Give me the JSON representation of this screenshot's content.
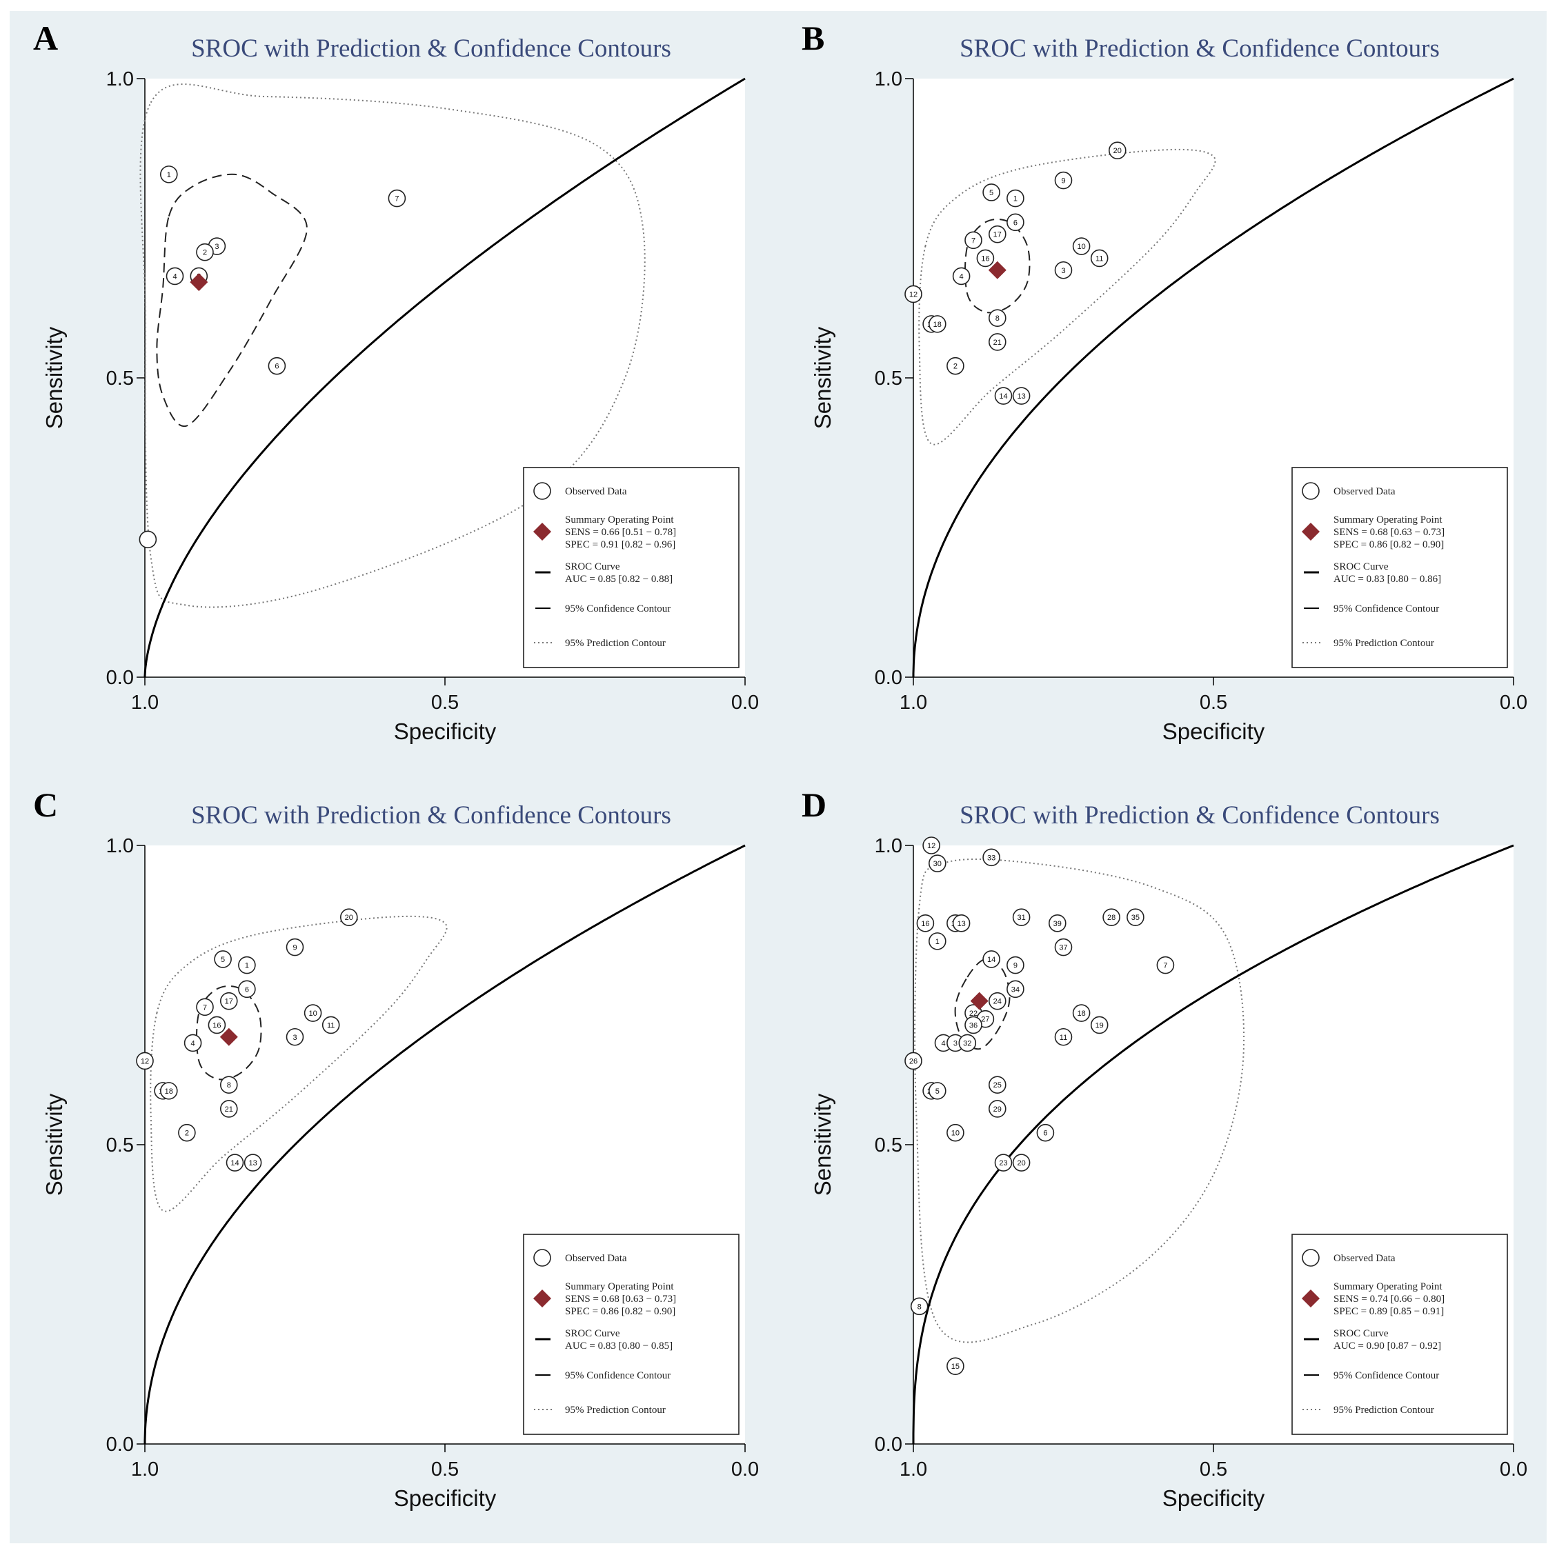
{
  "chart_data": [
    {
      "type": "scatter",
      "panel": "A",
      "title": "SROC with Prediction & Confidence Contours",
      "xlabel": "Specificity",
      "ylabel": "Sensitivity",
      "xlim": [
        1.0,
        0.0
      ],
      "ylim": [
        0.0,
        1.0
      ],
      "xticks": [
        "1.0",
        "0.5",
        "0.0"
      ],
      "yticks": [
        "0.0",
        "0.5",
        "1.0"
      ],
      "legend_position": "bottom-right",
      "legend": {
        "observed": "Observed Data",
        "summary_title": "Summary Operating Point",
        "summary_sens": "SENS = 0.66 [0.51 − 0.78]",
        "summary_spec": "SPEC = 0.91 [0.82 − 0.96]",
        "sroc_title": "SROC Curve",
        "sroc_auc": "AUC = 0.85 [0.82 − 0.88]",
        "confidence": "95% Confidence Contour",
        "prediction": "95% Prediction Contour"
      },
      "summary_point": {
        "spec": 0.91,
        "sens": 0.66
      },
      "sroc_b": 0.6,
      "confidence_contour": [
        [
          0.96,
          0.77
        ],
        [
          0.92,
          0.82
        ],
        [
          0.85,
          0.84
        ],
        [
          0.79,
          0.81
        ],
        [
          0.73,
          0.75
        ],
        [
          0.79,
          0.63
        ],
        [
          0.86,
          0.51
        ],
        [
          0.93,
          0.42
        ],
        [
          0.97,
          0.47
        ],
        [
          0.98,
          0.55
        ],
        [
          0.97,
          0.65
        ]
      ],
      "prediction_contour": [
        [
          0.99,
          0.96
        ],
        [
          0.8,
          0.97
        ],
        [
          0.5,
          0.95
        ],
        [
          0.25,
          0.89
        ],
        [
          0.17,
          0.75
        ],
        [
          0.2,
          0.5
        ],
        [
          0.35,
          0.3
        ],
        [
          0.7,
          0.15
        ],
        [
          0.93,
          0.12
        ],
        [
          0.99,
          0.2
        ],
        [
          0.999,
          0.6
        ]
      ],
      "studies": [
        {
          "label": "1",
          "spec": 0.96,
          "sens": 0.84
        },
        {
          "label": "7",
          "spec": 0.58,
          "sens": 0.8
        },
        {
          "label": "3",
          "spec": 0.88,
          "sens": 0.72
        },
        {
          "label": "2",
          "spec": 0.9,
          "sens": 0.71
        },
        {
          "label": "4",
          "spec": 0.95,
          "sens": 0.67
        },
        {
          "label": "5",
          "spec": 0.91,
          "sens": 0.67
        },
        {
          "label": "6",
          "spec": 0.78,
          "sens": 0.52
        },
        {
          "label": "",
          "spec": 0.995,
          "sens": 0.23
        }
      ]
    },
    {
      "type": "scatter",
      "panel": "B",
      "title": "SROC with Prediction & Confidence Contours",
      "xlabel": "Specificity",
      "ylabel": "Sensitivity",
      "xlim": [
        1.0,
        0.0
      ],
      "ylim": [
        0.0,
        1.0
      ],
      "xticks": [
        "1.0",
        "0.5",
        "0.0"
      ],
      "yticks": [
        "0.0",
        "0.5",
        "1.0"
      ],
      "legend_position": "bottom-right",
      "legend": {
        "observed": "Observed Data",
        "summary_title": "Summary Operating Point",
        "summary_sens": "SENS = 0.68 [0.63 − 0.73]",
        "summary_spec": "SPEC = 0.86 [0.82 − 0.90]",
        "sroc_title": "SROC Curve",
        "sroc_auc": "AUC = 0.83 [0.80 − 0.86]",
        "confidence": "95% Confidence Contour",
        "prediction": "95% Prediction Contour"
      },
      "summary_point": {
        "spec": 0.86,
        "sens": 0.68
      },
      "sroc_b": 0.5,
      "confidence_contour": [
        [
          0.91,
          0.72
        ],
        [
          0.88,
          0.76
        ],
        [
          0.84,
          0.76
        ],
        [
          0.81,
          0.72
        ],
        [
          0.81,
          0.66
        ],
        [
          0.84,
          0.62
        ],
        [
          0.88,
          0.61
        ],
        [
          0.91,
          0.64
        ]
      ],
      "prediction_contour": [
        [
          0.98,
          0.72
        ],
        [
          0.93,
          0.8
        ],
        [
          0.82,
          0.85
        ],
        [
          0.6,
          0.88
        ],
        [
          0.5,
          0.87
        ],
        [
          0.53,
          0.81
        ],
        [
          0.6,
          0.72
        ],
        [
          0.75,
          0.58
        ],
        [
          0.87,
          0.48
        ],
        [
          0.97,
          0.39
        ],
        [
          0.99,
          0.55
        ]
      ],
      "studies": [
        {
          "label": "20",
          "spec": 0.66,
          "sens": 0.88
        },
        {
          "label": "9",
          "spec": 0.75,
          "sens": 0.83
        },
        {
          "label": "5",
          "spec": 0.87,
          "sens": 0.81
        },
        {
          "label": "1",
          "spec": 0.83,
          "sens": 0.8
        },
        {
          "label": "6",
          "spec": 0.83,
          "sens": 0.76
        },
        {
          "label": "17",
          "spec": 0.86,
          "sens": 0.74
        },
        {
          "label": "7",
          "spec": 0.9,
          "sens": 0.73
        },
        {
          "label": "16",
          "spec": 0.88,
          "sens": 0.7
        },
        {
          "label": "10",
          "spec": 0.72,
          "sens": 0.72
        },
        {
          "label": "11",
          "spec": 0.69,
          "sens": 0.7
        },
        {
          "label": "3",
          "spec": 0.75,
          "sens": 0.68
        },
        {
          "label": "4",
          "spec": 0.92,
          "sens": 0.67
        },
        {
          "label": "12",
          "spec": 1.0,
          "sens": 0.64
        },
        {
          "label": "15",
          "spec": 0.97,
          "sens": 0.59
        },
        {
          "label": "18",
          "spec": 0.96,
          "sens": 0.59
        },
        {
          "label": "8",
          "spec": 0.86,
          "sens": 0.6
        },
        {
          "label": "21",
          "spec": 0.86,
          "sens": 0.56
        },
        {
          "label": "2",
          "spec": 0.93,
          "sens": 0.52
        },
        {
          "label": "13",
          "spec": 0.82,
          "sens": 0.47
        },
        {
          "label": "14",
          "spec": 0.85,
          "sens": 0.47
        }
      ]
    },
    {
      "type": "scatter",
      "panel": "C",
      "title": "SROC with Prediction & Confidence Contours",
      "xlabel": "Specificity",
      "ylabel": "Sensitivity",
      "xlim": [
        1.0,
        0.0
      ],
      "ylim": [
        0.0,
        1.0
      ],
      "xticks": [
        "1.0",
        "0.5",
        "0.0"
      ],
      "yticks": [
        "0.0",
        "0.5",
        "1.0"
      ],
      "legend_position": "bottom-right",
      "legend": {
        "observed": "Observed Data",
        "summary_title": "Summary Operating Point",
        "summary_sens": "SENS = 0.68 [0.63 − 0.73]",
        "summary_spec": "SPEC = 0.86 [0.82 − 0.90]",
        "sroc_title": "SROC Curve",
        "sroc_auc": "AUC = 0.83 [0.80 − 0.85]",
        "confidence": "95% Confidence Contour",
        "prediction": "95% Prediction Contour"
      },
      "summary_point": {
        "spec": 0.86,
        "sens": 0.68
      },
      "sroc_b": 0.5,
      "confidence_contour": [
        [
          0.91,
          0.72
        ],
        [
          0.88,
          0.76
        ],
        [
          0.84,
          0.76
        ],
        [
          0.81,
          0.72
        ],
        [
          0.81,
          0.66
        ],
        [
          0.84,
          0.62
        ],
        [
          0.88,
          0.61
        ],
        [
          0.91,
          0.64
        ]
      ],
      "prediction_contour": [
        [
          0.98,
          0.72
        ],
        [
          0.93,
          0.8
        ],
        [
          0.82,
          0.85
        ],
        [
          0.6,
          0.88
        ],
        [
          0.5,
          0.87
        ],
        [
          0.53,
          0.81
        ],
        [
          0.6,
          0.72
        ],
        [
          0.75,
          0.58
        ],
        [
          0.87,
          0.48
        ],
        [
          0.97,
          0.39
        ],
        [
          0.99,
          0.55
        ]
      ],
      "studies": [
        {
          "label": "20",
          "spec": 0.66,
          "sens": 0.88
        },
        {
          "label": "9",
          "spec": 0.75,
          "sens": 0.83
        },
        {
          "label": "5",
          "spec": 0.87,
          "sens": 0.81
        },
        {
          "label": "1",
          "spec": 0.83,
          "sens": 0.8
        },
        {
          "label": "6",
          "spec": 0.83,
          "sens": 0.76
        },
        {
          "label": "17",
          "spec": 0.86,
          "sens": 0.74
        },
        {
          "label": "7",
          "spec": 0.9,
          "sens": 0.73
        },
        {
          "label": "16",
          "spec": 0.88,
          "sens": 0.7
        },
        {
          "label": "10",
          "spec": 0.72,
          "sens": 0.72
        },
        {
          "label": "11",
          "spec": 0.69,
          "sens": 0.7
        },
        {
          "label": "3",
          "spec": 0.75,
          "sens": 0.68
        },
        {
          "label": "4",
          "spec": 0.92,
          "sens": 0.67
        },
        {
          "label": "12",
          "spec": 1.0,
          "sens": 0.64
        },
        {
          "label": "15",
          "spec": 0.97,
          "sens": 0.59
        },
        {
          "label": "18",
          "spec": 0.96,
          "sens": 0.59
        },
        {
          "label": "8",
          "spec": 0.86,
          "sens": 0.6
        },
        {
          "label": "21",
          "spec": 0.86,
          "sens": 0.56
        },
        {
          "label": "2",
          "spec": 0.93,
          "sens": 0.52
        },
        {
          "label": "13",
          "spec": 0.82,
          "sens": 0.47
        },
        {
          "label": "14",
          "spec": 0.85,
          "sens": 0.47
        }
      ]
    },
    {
      "type": "scatter",
      "panel": "D",
      "title": "SROC with Prediction & Confidence Contours",
      "xlabel": "Specificity",
      "ylabel": "Sensitivity",
      "xlim": [
        1.0,
        0.0
      ],
      "ylim": [
        0.0,
        1.0
      ],
      "xticks": [
        "1.0",
        "0.5",
        "0.0"
      ],
      "yticks": [
        "0.0",
        "0.5",
        "1.0"
      ],
      "legend_position": "bottom-right",
      "legend": {
        "observed": "Observed Data",
        "summary_title": "Summary Operating Point",
        "summary_sens": "SENS = 0.74 [0.66 − 0.80]",
        "summary_spec": "SPEC = 0.89 [0.85 − 0.91]",
        "sroc_title": "SROC Curve",
        "sroc_auc": "AUC = 0.90 [0.87 − 0.92]",
        "confidence": "95% Confidence Contour",
        "prediction": "95% Prediction Contour"
      },
      "summary_point": {
        "spec": 0.89,
        "sens": 0.74
      },
      "sroc_b": 0.4,
      "confidence_contour": [
        [
          0.91,
          0.78
        ],
        [
          0.88,
          0.81
        ],
        [
          0.85,
          0.79
        ],
        [
          0.84,
          0.74
        ],
        [
          0.86,
          0.69
        ],
        [
          0.89,
          0.66
        ],
        [
          0.92,
          0.68
        ],
        [
          0.93,
          0.73
        ]
      ],
      "prediction_contour": [
        [
          0.99,
          0.9
        ],
        [
          0.95,
          0.97
        ],
        [
          0.8,
          0.97
        ],
        [
          0.6,
          0.93
        ],
        [
          0.48,
          0.85
        ],
        [
          0.45,
          0.65
        ],
        [
          0.5,
          0.45
        ],
        [
          0.62,
          0.3
        ],
        [
          0.8,
          0.2
        ],
        [
          0.96,
          0.2
        ],
        [
          0.995,
          0.55
        ]
      ],
      "studies": [
        {
          "label": "12",
          "spec": 0.97,
          "sens": 1.0
        },
        {
          "label": "30",
          "spec": 0.96,
          "sens": 0.97
        },
        {
          "label": "33",
          "spec": 0.87,
          "sens": 0.98
        },
        {
          "label": "16",
          "spec": 0.98,
          "sens": 0.87
        },
        {
          "label": "17",
          "spec": 0.93,
          "sens": 0.87
        },
        {
          "label": "13",
          "spec": 0.92,
          "sens": 0.87
        },
        {
          "label": "1",
          "spec": 0.96,
          "sens": 0.84
        },
        {
          "label": "31",
          "spec": 0.82,
          "sens": 0.88
        },
        {
          "label": "39",
          "spec": 0.76,
          "sens": 0.87
        },
        {
          "label": "28",
          "spec": 0.67,
          "sens": 0.88
        },
        {
          "label": "35",
          "spec": 0.63,
          "sens": 0.88
        },
        {
          "label": "37",
          "spec": 0.75,
          "sens": 0.83
        },
        {
          "label": "14",
          "spec": 0.87,
          "sens": 0.81
        },
        {
          "label": "9",
          "spec": 0.83,
          "sens": 0.8
        },
        {
          "label": "7",
          "spec": 0.58,
          "sens": 0.8
        },
        {
          "label": "34",
          "spec": 0.83,
          "sens": 0.76
        },
        {
          "label": "24",
          "spec": 0.86,
          "sens": 0.74
        },
        {
          "label": "18",
          "spec": 0.72,
          "sens": 0.72
        },
        {
          "label": "22",
          "spec": 0.9,
          "sens": 0.72
        },
        {
          "label": "27",
          "spec": 0.88,
          "sens": 0.71
        },
        {
          "label": "36",
          "spec": 0.9,
          "sens": 0.7
        },
        {
          "label": "19",
          "spec": 0.69,
          "sens": 0.7
        },
        {
          "label": "11",
          "spec": 0.75,
          "sens": 0.68
        },
        {
          "label": "4",
          "spec": 0.95,
          "sens": 0.67
        },
        {
          "label": "3",
          "spec": 0.93,
          "sens": 0.67
        },
        {
          "label": "32",
          "spec": 0.91,
          "sens": 0.67
        },
        {
          "label": "26",
          "spec": 1.0,
          "sens": 0.64
        },
        {
          "label": "25",
          "spec": 0.86,
          "sens": 0.6
        },
        {
          "label": "21",
          "spec": 0.97,
          "sens": 0.59
        },
        {
          "label": "5",
          "spec": 0.96,
          "sens": 0.59
        },
        {
          "label": "29",
          "spec": 0.86,
          "sens": 0.56
        },
        {
          "label": "10",
          "spec": 0.93,
          "sens": 0.52
        },
        {
          "label": "6",
          "spec": 0.78,
          "sens": 0.52
        },
        {
          "label": "23",
          "spec": 0.85,
          "sens": 0.47
        },
        {
          "label": "20",
          "spec": 0.82,
          "sens": 0.47
        },
        {
          "label": "8",
          "spec": 0.99,
          "sens": 0.23
        },
        {
          "label": "15",
          "spec": 0.93,
          "sens": 0.13
        }
      ]
    }
  ],
  "colors": {
    "figure_background": "#e9f0f3",
    "plot_background": "#ffffff",
    "title": "#3a4a7a",
    "summary_point": "#8b2a2f",
    "curve": "#000000"
  }
}
